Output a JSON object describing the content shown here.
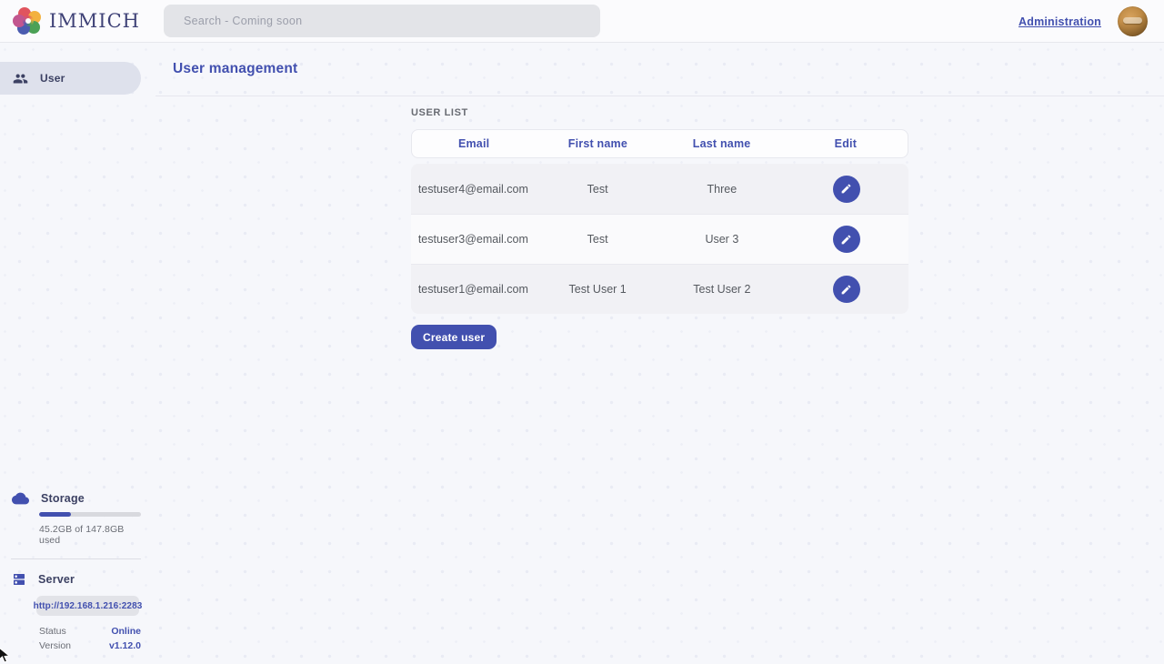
{
  "topbar": {
    "logo_text": "IMMICH",
    "search_placeholder": "Search - Coming soon",
    "admin_link": "Administration"
  },
  "sidebar": {
    "items": [
      {
        "label": "User"
      }
    ],
    "storage": {
      "title": "Storage",
      "percent_used": 31,
      "usage_text": "45.2GB of 147.8GB used"
    },
    "server": {
      "title": "Server",
      "url": "http://192.168.1.216:2283",
      "status_label": "Status",
      "status_value": "Online",
      "version_label": "Version",
      "version_value": "v1.12.0"
    }
  },
  "main": {
    "title": "User management",
    "section_label": "USER LIST",
    "table": {
      "headers": [
        "Email",
        "First name",
        "Last name",
        "Edit"
      ],
      "rows": [
        {
          "email": "testuser4@email.com",
          "first_name": "Test",
          "last_name": "Three"
        },
        {
          "email": "testuser3@email.com",
          "first_name": "Test",
          "last_name": "User 3"
        },
        {
          "email": "testuser1@email.com",
          "first_name": "Test User 1",
          "last_name": "Test User 2"
        }
      ]
    },
    "create_button": "Create user"
  },
  "colors": {
    "primary": "#4250af",
    "status_online": "#4250af",
    "row_alt": "#f1f1f5"
  }
}
